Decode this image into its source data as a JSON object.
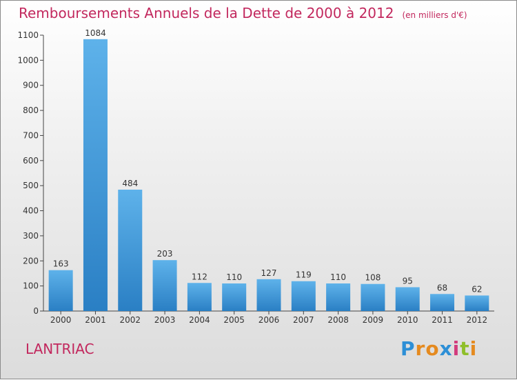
{
  "title": "Remboursements Annuels de la Dette de 2000 à 2012",
  "unit": "(en milliers d'€)",
  "commune": "LANTRIAC",
  "brand": {
    "letters": [
      "P",
      "r",
      "o",
      "x",
      "i",
      "t",
      "i"
    ],
    "colors": [
      "#2d8fd6",
      "#e58a1f",
      "#e58a1f",
      "#2d8fd6",
      "#d23c7d",
      "#8fbf2a",
      "#e58a1f"
    ]
  },
  "colors": {
    "bar_top": "#5eb2ea",
    "bar_bottom": "#2a7fc4",
    "title": "#c2275d",
    "axis": "#333333"
  },
  "chart_data": {
    "type": "bar",
    "title": "Remboursements Annuels de la Dette de 2000 à 2012",
    "xlabel": "",
    "ylabel": "",
    "ylim": [
      0,
      1100
    ],
    "yticks": [
      0,
      100,
      200,
      300,
      400,
      500,
      600,
      700,
      800,
      900,
      1000,
      1100
    ],
    "categories": [
      "2000",
      "2001",
      "2002",
      "2003",
      "2004",
      "2005",
      "2006",
      "2007",
      "2008",
      "2009",
      "2010",
      "2011",
      "2012"
    ],
    "values": [
      163,
      1084,
      484,
      203,
      112,
      110,
      127,
      119,
      110,
      108,
      95,
      68,
      62
    ],
    "grid": false
  }
}
